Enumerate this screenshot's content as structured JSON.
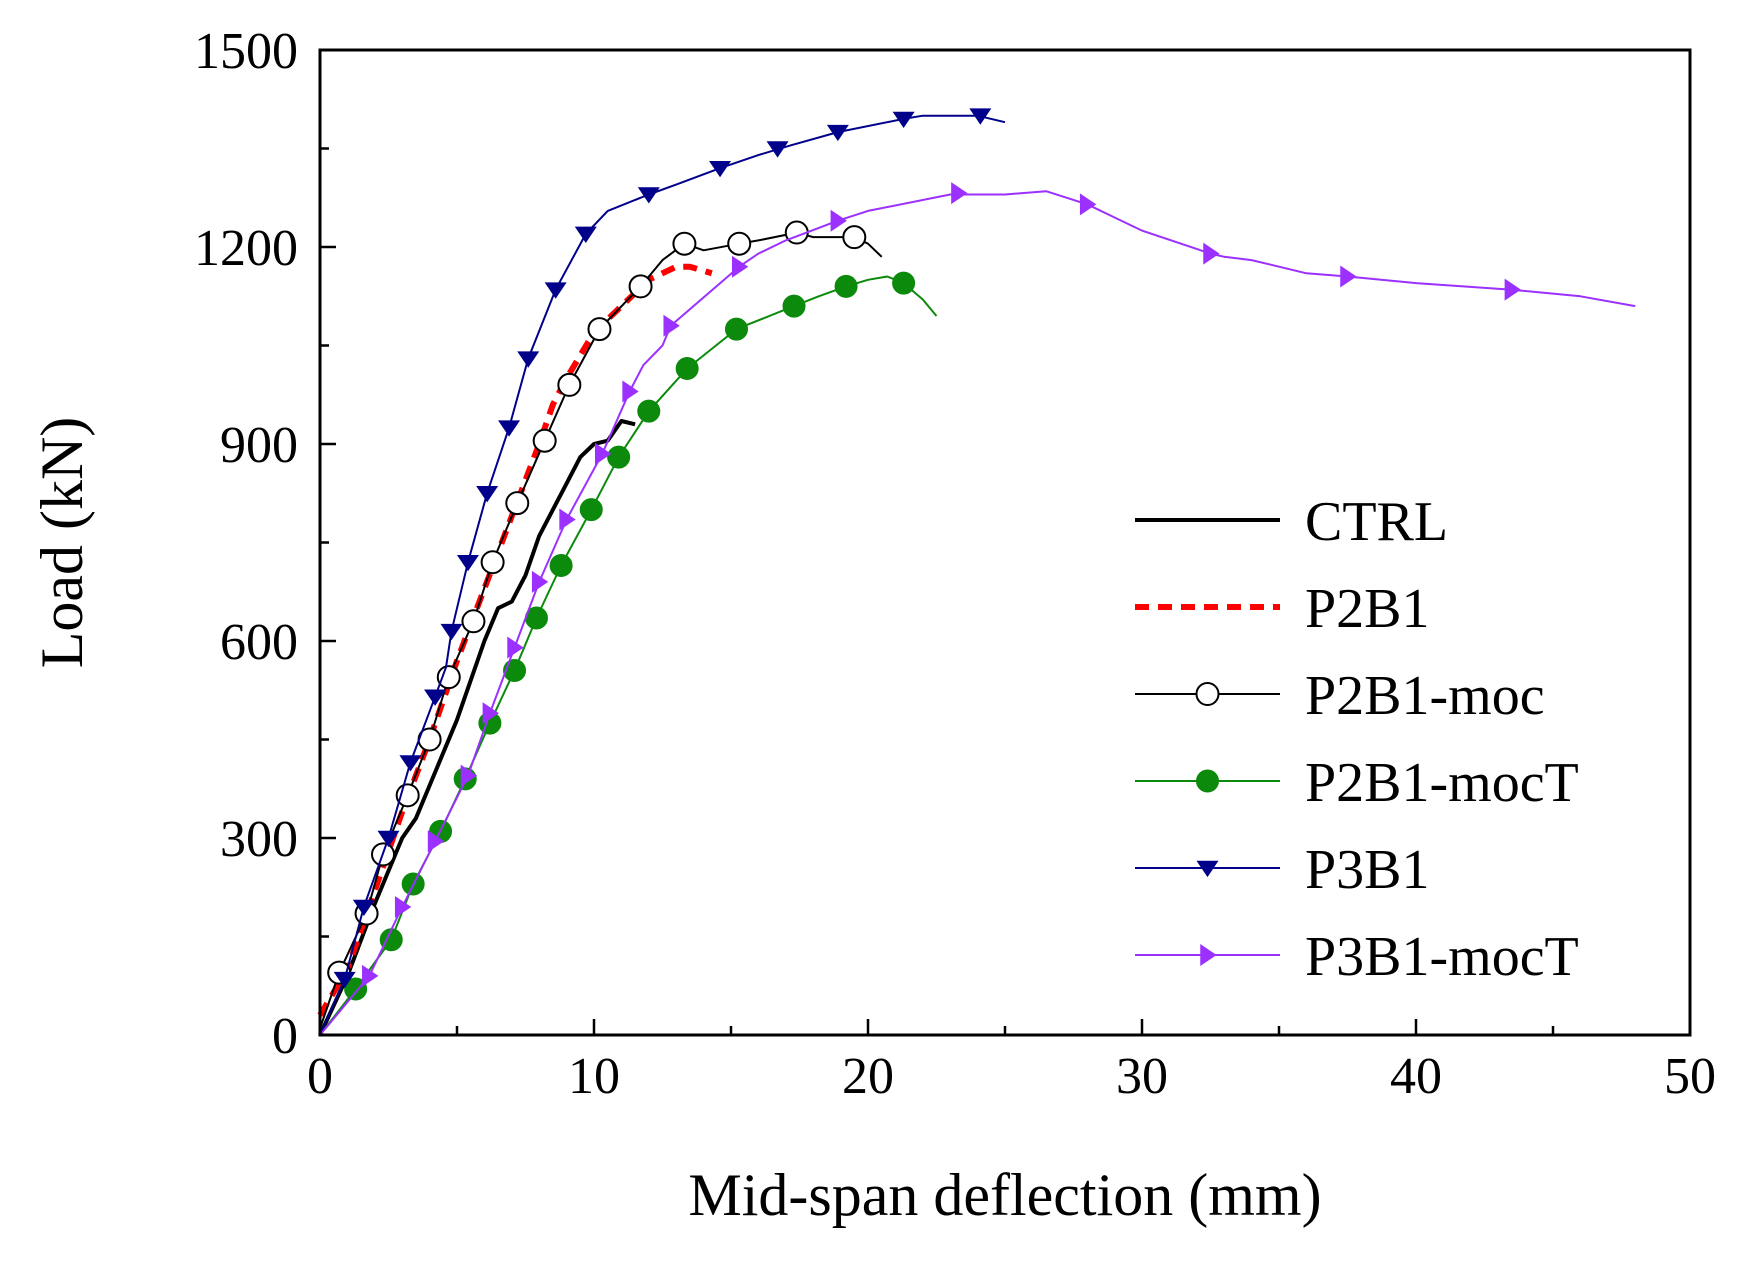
{
  "chart_data": {
    "type": "line",
    "title": "",
    "xlabel": "Mid-span deflection (mm)",
    "ylabel": "Load (kN)",
    "xlim": [
      0,
      50
    ],
    "ylim": [
      0,
      1500
    ],
    "xticks": [
      0,
      10,
      20,
      30,
      40,
      50
    ],
    "yticks": [
      0,
      300,
      600,
      900,
      1200,
      1500
    ],
    "xminor": [
      5,
      15,
      25,
      35,
      45
    ],
    "yminor": [
      150,
      450,
      750,
      1050,
      1350
    ],
    "grid": false,
    "legend_position": "right",
    "series": [
      {
        "name": "CTRL",
        "color": "#000000",
        "line_width": 4,
        "dash": "",
        "marker": "none",
        "points": [
          [
            0,
            0
          ],
          [
            1,
            90
          ],
          [
            2,
            200
          ],
          [
            3,
            300
          ],
          [
            3.5,
            330
          ],
          [
            4,
            380
          ],
          [
            5,
            480
          ],
          [
            6,
            600
          ],
          [
            6.5,
            650
          ],
          [
            7,
            660
          ],
          [
            7.5,
            700
          ],
          [
            8,
            760
          ],
          [
            9,
            840
          ],
          [
            9.5,
            880
          ],
          [
            10,
            900
          ],
          [
            10.5,
            905
          ],
          [
            11,
            935
          ],
          [
            11.5,
            930
          ]
        ],
        "markers": []
      },
      {
        "name": "P2B1",
        "color": "#ff0000",
        "line_width": 6,
        "dash": "14,9",
        "marker": "none",
        "points": [
          [
            0,
            30
          ],
          [
            1,
            100
          ],
          [
            2,
            220
          ],
          [
            3,
            340
          ],
          [
            4,
            450
          ],
          [
            5,
            570
          ],
          [
            6,
            680
          ],
          [
            7,
            790
          ],
          [
            8,
            900
          ],
          [
            8.5,
            960
          ],
          [
            9,
            1000
          ],
          [
            10,
            1070
          ],
          [
            11,
            1110
          ],
          [
            12,
            1150
          ],
          [
            13,
            1170
          ],
          [
            13.5,
            1170
          ],
          [
            14.3,
            1160
          ]
        ],
        "markers": []
      },
      {
        "name": "P2B1-moc",
        "color": "#000000",
        "line_width": 2,
        "dash": "",
        "marker": "circle-open",
        "points": [
          [
            0,
            10
          ],
          [
            0.7,
            95
          ],
          [
            1.7,
            185
          ],
          [
            2.3,
            275
          ],
          [
            3.2,
            365
          ],
          [
            4,
            450
          ],
          [
            4.7,
            545
          ],
          [
            5.6,
            630
          ],
          [
            6.3,
            720
          ],
          [
            7.2,
            810
          ],
          [
            8.2,
            905
          ],
          [
            9.1,
            990
          ],
          [
            10.2,
            1075
          ],
          [
            11.7,
            1140
          ],
          [
            12.5,
            1180
          ],
          [
            13.3,
            1205
          ],
          [
            14,
            1195
          ],
          [
            15.3,
            1205
          ],
          [
            16,
            1210
          ],
          [
            17.4,
            1222
          ],
          [
            18,
            1215
          ],
          [
            19.5,
            1215
          ],
          [
            20,
            1205
          ],
          [
            20.5,
            1185
          ]
        ],
        "markers": [
          [
            0.7,
            95
          ],
          [
            1.7,
            185
          ],
          [
            2.3,
            275
          ],
          [
            3.2,
            365
          ],
          [
            4,
            450
          ],
          [
            4.7,
            545
          ],
          [
            5.6,
            630
          ],
          [
            6.3,
            720
          ],
          [
            7.2,
            810
          ],
          [
            8.2,
            905
          ],
          [
            9.1,
            990
          ],
          [
            10.2,
            1075
          ],
          [
            11.7,
            1140
          ],
          [
            13.3,
            1205
          ],
          [
            15.3,
            1205
          ],
          [
            17.4,
            1222
          ],
          [
            19.5,
            1215
          ]
        ]
      },
      {
        "name": "P2B1-mocT",
        "color": "#0b8a0b",
        "line_width": 2,
        "dash": "",
        "marker": "circle-filled",
        "points": [
          [
            0,
            0
          ],
          [
            1.3,
            70
          ],
          [
            2.6,
            145
          ],
          [
            3.4,
            230
          ],
          [
            4.4,
            310
          ],
          [
            5.3,
            390
          ],
          [
            6.2,
            475
          ],
          [
            7.1,
            555
          ],
          [
            7.9,
            635
          ],
          [
            8.8,
            715
          ],
          [
            9.9,
            800
          ],
          [
            10.9,
            880
          ],
          [
            12,
            950
          ],
          [
            13.4,
            1015
          ],
          [
            15.2,
            1075
          ],
          [
            17.3,
            1110
          ],
          [
            18.2,
            1125
          ],
          [
            19.2,
            1140
          ],
          [
            20,
            1150
          ],
          [
            20.7,
            1155
          ],
          [
            21.3,
            1145
          ],
          [
            22,
            1120
          ],
          [
            22.5,
            1095
          ]
        ],
        "markers": [
          [
            1.3,
            70
          ],
          [
            2.6,
            145
          ],
          [
            3.4,
            230
          ],
          [
            4.4,
            310
          ],
          [
            5.3,
            390
          ],
          [
            6.2,
            475
          ],
          [
            7.1,
            555
          ],
          [
            7.9,
            635
          ],
          [
            8.8,
            715
          ],
          [
            9.9,
            800
          ],
          [
            10.9,
            880
          ],
          [
            12,
            950
          ],
          [
            13.4,
            1015
          ],
          [
            15.2,
            1075
          ],
          [
            17.3,
            1110
          ],
          [
            19.2,
            1140
          ],
          [
            21.3,
            1145
          ]
        ]
      },
      {
        "name": "P3B1",
        "color": "#00008b",
        "line_width": 2,
        "dash": "",
        "marker": "triangle-down",
        "points": [
          [
            0,
            0
          ],
          [
            0.9,
            85
          ],
          [
            1.6,
            195
          ],
          [
            2.5,
            300
          ],
          [
            3.3,
            415
          ],
          [
            4.2,
            515
          ],
          [
            4.6,
            560
          ],
          [
            4.8,
            615
          ],
          [
            5.4,
            720
          ],
          [
            6.1,
            825
          ],
          [
            6.9,
            925
          ],
          [
            7.6,
            1030
          ],
          [
            8.6,
            1135
          ],
          [
            9.7,
            1220
          ],
          [
            10.5,
            1255
          ],
          [
            12,
            1280
          ],
          [
            13,
            1295
          ],
          [
            14.6,
            1320
          ],
          [
            16,
            1340
          ],
          [
            17.2,
            1355
          ],
          [
            18.9,
            1375
          ],
          [
            21.3,
            1395
          ],
          [
            22,
            1400
          ],
          [
            24,
            1400
          ],
          [
            25,
            1390
          ]
        ],
        "markers": [
          [
            0.9,
            85
          ],
          [
            1.6,
            195
          ],
          [
            2.5,
            300
          ],
          [
            3.3,
            415
          ],
          [
            4.2,
            515
          ],
          [
            4.8,
            615
          ],
          [
            5.4,
            720
          ],
          [
            6.1,
            825
          ],
          [
            6.9,
            925
          ],
          [
            7.6,
            1030
          ],
          [
            8.6,
            1135
          ],
          [
            9.7,
            1220
          ],
          [
            12,
            1280
          ],
          [
            14.6,
            1320
          ],
          [
            16.7,
            1350
          ],
          [
            18.9,
            1375
          ],
          [
            21.3,
            1395
          ],
          [
            24.1,
            1400
          ]
        ]
      },
      {
        "name": "P3B1-mocT",
        "color": "#9b30ff",
        "line_width": 2,
        "dash": "",
        "marker": "triangle-right",
        "points": [
          [
            0,
            0
          ],
          [
            1.8,
            90
          ],
          [
            3,
            195
          ],
          [
            4.2,
            295
          ],
          [
            5.4,
            395
          ],
          [
            6.2,
            490
          ],
          [
            7.1,
            590
          ],
          [
            8,
            690
          ],
          [
            9,
            785
          ],
          [
            10.3,
            885
          ],
          [
            11.3,
            980
          ],
          [
            11.8,
            1020
          ],
          [
            12.5,
            1050
          ],
          [
            12.8,
            1080
          ],
          [
            15.3,
            1170
          ],
          [
            16,
            1190
          ],
          [
            17,
            1210
          ],
          [
            18.9,
            1240
          ],
          [
            20,
            1255
          ],
          [
            23,
            1280
          ],
          [
            24,
            1280
          ],
          [
            25,
            1280
          ],
          [
            26.5,
            1285
          ],
          [
            28,
            1265
          ],
          [
            29,
            1245
          ],
          [
            30,
            1225
          ],
          [
            32.5,
            1190
          ],
          [
            33,
            1185
          ],
          [
            34,
            1180
          ],
          [
            35,
            1170
          ],
          [
            36,
            1160
          ],
          [
            37.5,
            1155
          ],
          [
            40,
            1145
          ],
          [
            43.5,
            1135
          ],
          [
            46,
            1125
          ],
          [
            48,
            1110
          ]
        ],
        "markers": [
          [
            1.8,
            90
          ],
          [
            3,
            195
          ],
          [
            4.2,
            295
          ],
          [
            5.4,
            395
          ],
          [
            6.2,
            490
          ],
          [
            7.1,
            590
          ],
          [
            8,
            690
          ],
          [
            9,
            785
          ],
          [
            10.3,
            885
          ],
          [
            11.3,
            980
          ],
          [
            12.8,
            1080
          ],
          [
            15.3,
            1170
          ],
          [
            18.9,
            1240
          ],
          [
            23.3,
            1282
          ],
          [
            28,
            1265
          ],
          [
            32.5,
            1190
          ],
          [
            37.5,
            1155
          ],
          [
            43.5,
            1135
          ]
        ]
      }
    ]
  }
}
